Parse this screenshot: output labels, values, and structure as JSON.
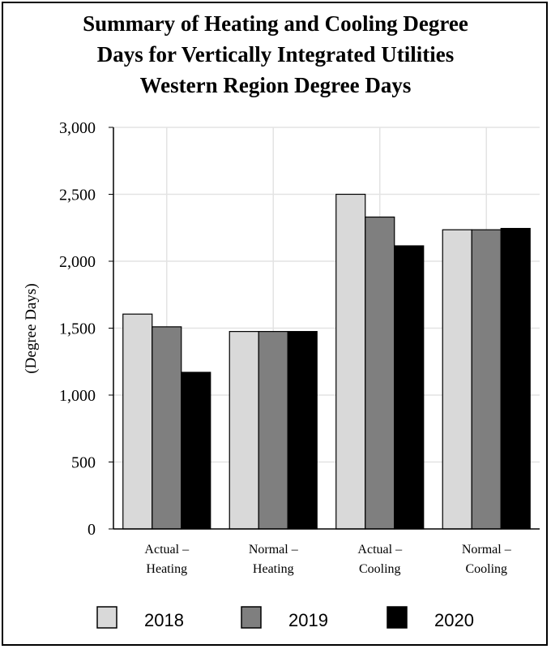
{
  "chart_data": {
    "type": "bar",
    "title_lines": [
      "Summary of Heating and Cooling Degree",
      "Days for Vertically Integrated Utilities",
      "Western Region Degree Days"
    ],
    "ylabel": "(Degree Days)",
    "xlabel": "",
    "ylim": [
      0,
      3000
    ],
    "yticks": [
      0,
      500,
      1000,
      1500,
      2000,
      2500,
      3000
    ],
    "ytick_labels": [
      "0",
      "500",
      "1,000",
      "1,500",
      "2,000",
      "2,500",
      "3,000"
    ],
    "categories": [
      [
        "Actual –",
        "Heating"
      ],
      [
        "Normal –",
        "Heating"
      ],
      [
        "Actual –",
        "Cooling"
      ],
      [
        "Normal –",
        "Cooling"
      ]
    ],
    "series": [
      {
        "name": "2018",
        "color": "#d9d9d9",
        "values": [
          1605,
          1475,
          2500,
          2235
        ]
      },
      {
        "name": "2019",
        "color": "#7f7f7f",
        "values": [
          1510,
          1475,
          2330,
          2235
        ]
      },
      {
        "name": "2020",
        "color": "#000000",
        "values": [
          1170,
          1475,
          2115,
          2245
        ]
      }
    ],
    "grid": true,
    "legend_position": "bottom"
  }
}
